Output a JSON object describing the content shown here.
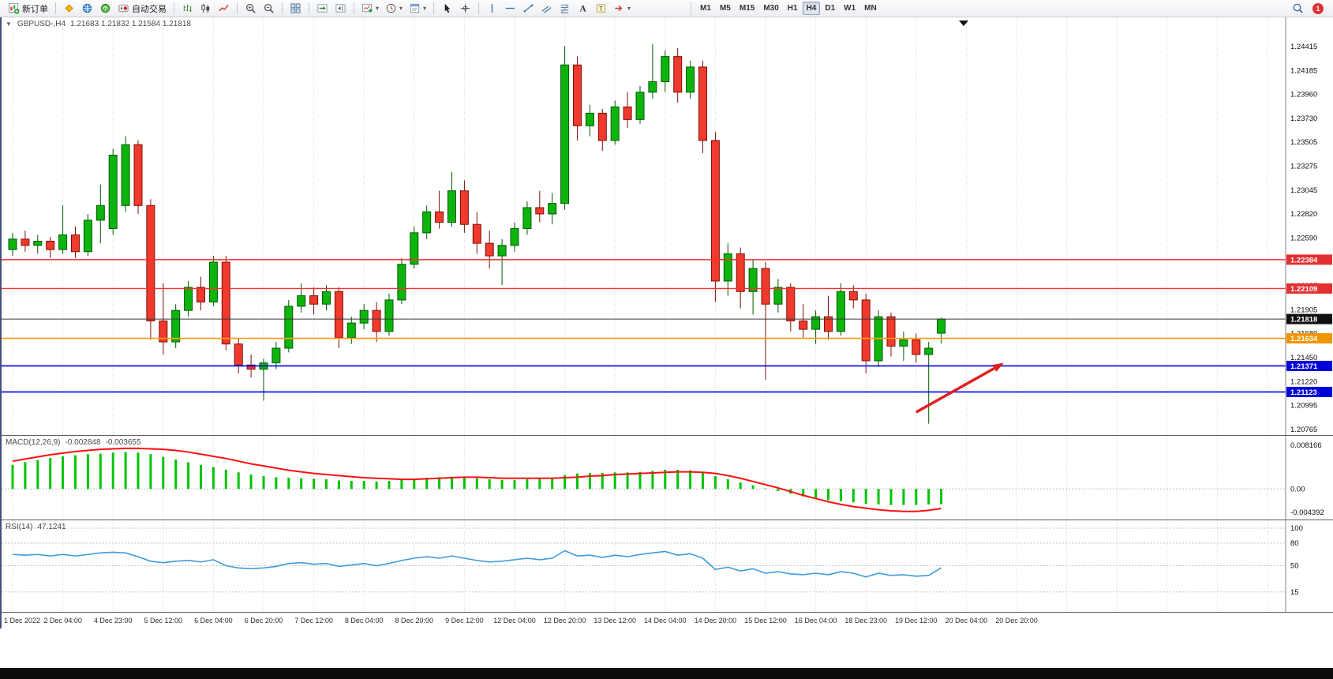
{
  "toolbar": {
    "groups": [
      {
        "items": [
          {
            "name": "new-order-button",
            "icon": "new-order",
            "label": "新订单"
          }
        ]
      },
      {
        "items": [
          {
            "name": "metaeditor-button",
            "icon": "metaeditor"
          },
          {
            "name": "market-button",
            "icon": "market"
          },
          {
            "name": "signals-button",
            "icon": "signals"
          },
          {
            "name": "autotrading-button",
            "icon": "autotrading",
            "label": "自动交易"
          }
        ]
      },
      {
        "items": [
          {
            "name": "bar-chart-button",
            "icon": "bars"
          },
          {
            "name": "candlestick-chart-button",
            "icon": "candles"
          },
          {
            "name": "line-chart-button",
            "icon": "linechart"
          }
        ]
      },
      {
        "items": [
          {
            "name": "zoom-in-button",
            "icon": "zoom-in"
          },
          {
            "name": "zoom-out-button",
            "icon": "zoom-out"
          }
        ]
      },
      {
        "items": [
          {
            "name": "tile-windows-button",
            "icon": "tile"
          }
        ]
      },
      {
        "items": [
          {
            "name": "auto-scroll-button",
            "icon": "auto-scroll"
          },
          {
            "name": "chart-shift-button",
            "icon": "chart-shift"
          }
        ]
      },
      {
        "items": [
          {
            "name": "indicators-button",
            "icon": "indicators",
            "dropdown": true
          },
          {
            "name": "periods-button",
            "icon": "clock",
            "dropdown": true
          },
          {
            "name": "templates-button",
            "icon": "template",
            "dropdown": true
          }
        ]
      },
      {
        "items": [
          {
            "name": "cursor-button",
            "icon": "cursor"
          },
          {
            "name": "crosshair-button",
            "icon": "crosshair"
          }
        ]
      },
      {
        "items": [
          {
            "name": "vertical-line-button",
            "icon": "vline"
          },
          {
            "name": "horizontal-line-button",
            "icon": "hline"
          },
          {
            "name": "trendline-button",
            "icon": "trendline"
          },
          {
            "name": "channel-button",
            "icon": "channel"
          },
          {
            "name": "fibonacci-button",
            "icon": "fibo"
          },
          {
            "name": "text-button",
            "icon": "textA"
          },
          {
            "name": "text-label-button",
            "icon": "textT"
          },
          {
            "name": "shapes-button",
            "icon": "shapes",
            "dropdown": true
          }
        ]
      }
    ],
    "timeframes": {
      "options": [
        "M1",
        "M5",
        "M15",
        "M30",
        "H1",
        "H4",
        "D1",
        "W1",
        "MN"
      ],
      "active": "H4"
    },
    "notification_count": "1"
  },
  "chart_data": {
    "type": "candlestick",
    "title": "GBPUSD-,H4",
    "symbol": "GBPUSD-",
    "period": "H4",
    "ohlc_text": "1.21683 1.21832 1.21584 1.21818",
    "current_bar": {
      "open": 1.21683,
      "high": 1.21832,
      "low": 1.21584,
      "close": 1.21818
    },
    "price_axis_ticks": [
      "1.24415",
      "1.24185",
      "1.23960",
      "1.23730",
      "1.23505",
      "1.23275",
      "1.23045",
      "1.22820",
      "1.22590",
      "1.22365",
      "1.22135",
      "1.21905",
      "1.21680",
      "1.21450",
      "1.21220",
      "1.20995",
      "1.20765"
    ],
    "time_axis_labels": [
      "1 Dec 2022",
      "2 Dec 04:00",
      "4 Dec 23:00",
      "5 Dec 12:00",
      "6 Dec 04:00",
      "6 Dec 20:00",
      "7 Dec 12:00",
      "8 Dec 04:00",
      "8 Dec 20:00",
      "9 Dec 12:00",
      "12 Dec 04:00",
      "12 Dec 20:00",
      "13 Dec 12:00",
      "14 Dec 04:00",
      "14 Dec 20:00",
      "15 Dec 12:00",
      "16 Dec 04:00",
      "18 Dec 23:00",
      "19 Dec 12:00",
      "20 Dec 04:00",
      "20 Dec 20:00"
    ],
    "bars_per_gridline": 4,
    "up_color": {
      "fill": "#0eb40e",
      "stroke": "#005a00"
    },
    "down_color": {
      "fill": "#f03a2d",
      "stroke": "#7e0f05"
    },
    "candles_ohlc": [
      [
        1.2248,
        1.2264,
        1.2242,
        1.2258
      ],
      [
        1.2258,
        1.2266,
        1.2246,
        1.2252
      ],
      [
        1.2252,
        1.2262,
        1.2244,
        1.2256
      ],
      [
        1.2256,
        1.226,
        1.224,
        1.2248
      ],
      [
        1.2248,
        1.229,
        1.2244,
        1.2262
      ],
      [
        1.2262,
        1.227,
        1.224,
        1.2246
      ],
      [
        1.2246,
        1.2282,
        1.2242,
        1.2276
      ],
      [
        1.2276,
        1.231,
        1.2254,
        1.229
      ],
      [
        1.2268,
        1.2344,
        1.2262,
        1.2338
      ],
      [
        1.229,
        1.2356,
        1.2284,
        1.2348
      ],
      [
        1.2348,
        1.2352,
        1.2282,
        1.229
      ],
      [
        1.229,
        1.2296,
        1.2162,
        1.218
      ],
      [
        1.218,
        1.2216,
        1.2148,
        1.216
      ],
      [
        1.216,
        1.2196,
        1.2154,
        1.219
      ],
      [
        1.219,
        1.2218,
        1.2184,
        1.2212
      ],
      [
        1.2212,
        1.2222,
        1.219,
        1.2198
      ],
      [
        1.2198,
        1.2242,
        1.2194,
        1.2236
      ],
      [
        1.2236,
        1.2242,
        1.2152,
        1.2158
      ],
      [
        1.2158,
        1.2164,
        1.213,
        1.2138
      ],
      [
        1.2138,
        1.2148,
        1.2126,
        1.2134
      ],
      [
        1.2134,
        1.2144,
        1.2104,
        1.214
      ],
      [
        1.214,
        1.216,
        1.2134,
        1.2154
      ],
      [
        1.2154,
        1.22,
        1.215,
        1.2194
      ],
      [
        1.2194,
        1.2216,
        1.2188,
        1.2204
      ],
      [
        1.2204,
        1.2212,
        1.2186,
        1.2196
      ],
      [
        1.2196,
        1.2214,
        1.219,
        1.2208
      ],
      [
        1.2208,
        1.2212,
        1.2154,
        1.2164
      ],
      [
        1.2164,
        1.2184,
        1.2158,
        1.2178
      ],
      [
        1.2178,
        1.2196,
        1.2172,
        1.219
      ],
      [
        1.219,
        1.2198,
        1.216,
        1.217
      ],
      [
        1.217,
        1.2206,
        1.2166,
        1.22
      ],
      [
        1.22,
        1.224,
        1.2196,
        1.2234
      ],
      [
        1.2234,
        1.227,
        1.223,
        1.2264
      ],
      [
        1.2264,
        1.229,
        1.2258,
        1.2284
      ],
      [
        1.2284,
        1.2304,
        1.2268,
        1.2274
      ],
      [
        1.2274,
        1.2322,
        1.227,
        1.2304
      ],
      [
        1.2304,
        1.2314,
        1.2264,
        1.2272
      ],
      [
        1.2272,
        1.2284,
        1.2244,
        1.2254
      ],
      [
        1.2254,
        1.2266,
        1.223,
        1.2242
      ],
      [
        1.2242,
        1.2258,
        1.2214,
        1.2252
      ],
      [
        1.2252,
        1.2274,
        1.2246,
        1.2268
      ],
      [
        1.2268,
        1.2294,
        1.2262,
        1.2288
      ],
      [
        1.2288,
        1.2304,
        1.2274,
        1.2282
      ],
      [
        1.2282,
        1.2302,
        1.2272,
        1.2292
      ],
      [
        1.2292,
        1.2442,
        1.2286,
        1.2424
      ],
      [
        1.2424,
        1.2432,
        1.2352,
        1.2366
      ],
      [
        1.2366,
        1.2386,
        1.2356,
        1.2378
      ],
      [
        1.2378,
        1.2382,
        1.2342,
        1.2352
      ],
      [
        1.2352,
        1.239,
        1.2348,
        1.2384
      ],
      [
        1.2384,
        1.2398,
        1.2364,
        1.2372
      ],
      [
        1.2372,
        1.2404,
        1.2368,
        1.2398
      ],
      [
        1.2398,
        1.2444,
        1.2392,
        1.2408
      ],
      [
        1.2408,
        1.2438,
        1.2398,
        1.2432
      ],
      [
        1.2432,
        1.244,
        1.2388,
        1.2398
      ],
      [
        1.2398,
        1.2428,
        1.2392,
        1.2422
      ],
      [
        1.2422,
        1.2428,
        1.234,
        1.2352
      ],
      [
        1.2352,
        1.236,
        1.2198,
        1.2218
      ],
      [
        1.2218,
        1.2254,
        1.2204,
        1.2244
      ],
      [
        1.2244,
        1.225,
        1.2192,
        1.2208
      ],
      [
        1.2208,
        1.2238,
        1.2186,
        1.223
      ],
      [
        1.223,
        1.2236,
        1.2124,
        1.2196
      ],
      [
        1.2196,
        1.222,
        1.2188,
        1.2212
      ],
      [
        1.2212,
        1.2216,
        1.217,
        1.218
      ],
      [
        1.218,
        1.2196,
        1.2164,
        1.2172
      ],
      [
        1.2172,
        1.219,
        1.2158,
        1.2184
      ],
      [
        1.2184,
        1.2204,
        1.2162,
        1.217
      ],
      [
        1.217,
        1.2216,
        1.2166,
        1.2208
      ],
      [
        1.2208,
        1.2214,
        1.2192,
        1.22
      ],
      [
        1.22,
        1.2206,
        1.213,
        1.2142
      ],
      [
        1.2142,
        1.219,
        1.2136,
        1.2184
      ],
      [
        1.2184,
        1.2188,
        1.2146,
        1.2156
      ],
      [
        1.2156,
        1.217,
        1.2142,
        1.2162
      ],
      [
        1.2162,
        1.2168,
        1.214,
        1.2148
      ],
      [
        1.2148,
        1.216,
        1.2082,
        1.2154
      ],
      [
        1.21683,
        1.21832,
        1.21584,
        1.21818
      ]
    ],
    "hlines": [
      {
        "price": 1.22384,
        "label": "1.22384",
        "color": "#ff2d2d",
        "tag": "#e23030",
        "width": 1.4
      },
      {
        "price": 1.22109,
        "label": "1.22109",
        "color": "#ff2d2d",
        "tag": "#e23030",
        "width": 1.4
      },
      {
        "price": 1.21818,
        "label": "1.21818",
        "color": "#3a3a3a",
        "tag": "#101010",
        "width": 1
      },
      {
        "price": 1.21634,
        "label": "1.21634",
        "color": "#ff9e00",
        "tag": "#f29500",
        "width": 1.6
      },
      {
        "price": 1.21371,
        "label": "1.21371",
        "color": "#0000ee",
        "tag": "#0000d8",
        "width": 1.6
      },
      {
        "price": 1.21123,
        "label": "1.21123",
        "color": "#0000ee",
        "tag": "#0000d8",
        "width": 1.6
      }
    ],
    "trend_arrow": {
      "from_bar": 72,
      "from_price": 1.2093,
      "to_bar": 79,
      "to_price": 1.214,
      "color": "#e02020"
    },
    "macd": {
      "label": "MACD(12,26,9)",
      "value_main": "-0.002848",
      "value_signal": "-0.003655",
      "axis_ticks": [
        "0.008166",
        "0.00",
        "-0.004392"
      ],
      "axis_max": 0.008166,
      "axis_min": -0.004392,
      "histogram_color": "#00c400",
      "signal_color": "#ff1010",
      "histogram": [
        0.0045,
        0.005,
        0.0054,
        0.0058,
        0.0061,
        0.0063,
        0.0065,
        0.0066,
        0.0068,
        0.0069,
        0.0068,
        0.0065,
        0.006,
        0.0055,
        0.005,
        0.0045,
        0.0041,
        0.0036,
        0.0031,
        0.0027,
        0.0024,
        0.0022,
        0.0021,
        0.002,
        0.0019,
        0.0018,
        0.0016,
        0.0015,
        0.0015,
        0.0014,
        0.0015,
        0.0017,
        0.0019,
        0.0021,
        0.0022,
        0.0023,
        0.0022,
        0.002,
        0.0018,
        0.0017,
        0.0017,
        0.0018,
        0.0019,
        0.002,
        0.0026,
        0.0029,
        0.003,
        0.003,
        0.0031,
        0.0031,
        0.0032,
        0.0034,
        0.0036,
        0.0036,
        0.0035,
        0.0032,
        0.0024,
        0.0018,
        0.0012,
        0.0007,
        0.0001,
        -0.0004,
        -0.0009,
        -0.0014,
        -0.0018,
        -0.0021,
        -0.0023,
        -0.0025,
        -0.0028,
        -0.0029,
        -0.003,
        -0.003,
        -0.003,
        -0.0029,
        -0.002848
      ],
      "signal": [
        0.0052,
        0.0056,
        0.006,
        0.0064,
        0.0067,
        0.007,
        0.0072,
        0.0074,
        0.0075,
        0.0076,
        0.0076,
        0.0075,
        0.0074,
        0.0072,
        0.0069,
        0.0065,
        0.0061,
        0.0057,
        0.0052,
        0.0047,
        0.0043,
        0.0039,
        0.0035,
        0.0032,
        0.0029,
        0.0027,
        0.0025,
        0.0023,
        0.0021,
        0.002,
        0.0019,
        0.0018,
        0.0018,
        0.0019,
        0.002,
        0.0021,
        0.0022,
        0.0022,
        0.0021,
        0.002,
        0.002,
        0.002,
        0.002,
        0.002,
        0.0021,
        0.0022,
        0.0024,
        0.0025,
        0.0027,
        0.0028,
        0.0029,
        0.003,
        0.0031,
        0.0032,
        0.0032,
        0.0031,
        0.0029,
        0.0025,
        0.002,
        0.0014,
        0.0008,
        0.0002,
        -0.0005,
        -0.0012,
        -0.0018,
        -0.0024,
        -0.0029,
        -0.0033,
        -0.0036,
        -0.0039,
        -0.0041,
        -0.0042,
        -0.0042,
        -0.004,
        -0.003655
      ]
    },
    "rsi": {
      "label": "RSI(14)",
      "value": "47.1241",
      "axis_ticks": [
        "100",
        "80",
        "50",
        "15"
      ],
      "color": "#3f9bdc",
      "values": [
        65,
        64,
        65,
        63,
        65,
        63,
        65,
        67,
        68,
        67,
        62,
        56,
        54,
        56,
        57,
        55,
        58,
        50,
        47,
        46,
        47,
        49,
        53,
        54,
        52,
        53,
        49,
        51,
        53,
        50,
        53,
        57,
        60,
        62,
        60,
        63,
        60,
        57,
        55,
        56,
        58,
        60,
        58,
        60,
        70,
        63,
        64,
        61,
        64,
        62,
        65,
        67,
        69,
        64,
        66,
        60,
        45,
        48,
        43,
        46,
        40,
        42,
        39,
        38,
        40,
        38,
        42,
        40,
        35,
        40,
        37,
        38,
        36,
        37,
        47.1241
      ]
    }
  }
}
